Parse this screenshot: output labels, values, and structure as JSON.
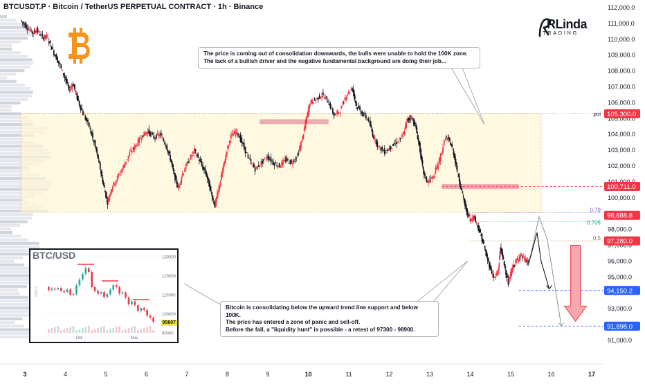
{
  "header": {
    "title": "BTCUSDT.P · Bitcoin / TetherUS PERPETUAL CONTRACT · 1h · Binance"
  },
  "brand": {
    "logo_main": "RLinda",
    "logo_sub": "TRADING",
    "icon": "bitcoin-logo-icon"
  },
  "colors": {
    "up": "#f23645",
    "down": "#131722",
    "zone": "#fff7d6",
    "level_red": "#f23645",
    "level_blue": "#2962ff",
    "fib_purple": "#7e57c2",
    "fib_teal": "#26a69a",
    "bitcoin": "#f7931a"
  },
  "annotations": {
    "top": {
      "line1": "The price is coming out of consolidation downwards, the bulls were unable to hold the 100K zone.",
      "line2": "The lack of a bullish driver and the negative fundamental background are doing their job..."
    },
    "bottom": {
      "line1": "Bitcoin is consolidating below the upward trend line support and below 100K.",
      "line2": "The price has entered a zone of panic and sell-off.",
      "line3": "Before the fall, a \"liquidity hunt\" is possible - a retest of 97300 - 98900."
    }
  },
  "chart_data": {
    "type": "candlestick",
    "title": "BTCUSDT.P · Bitcoin / TetherUS PERPETUAL CONTRACT · 1h · Binance",
    "ylim": [
      90500,
      112300
    ],
    "y_ticks": [
      "112,000.0",
      "111,000.0",
      "110,000.0",
      "109,000.0",
      "108,000.0",
      "107,000.0",
      "106,000.0",
      "105,000.0",
      "104,000.0",
      "103,000.0",
      "102,000.0",
      "101,000.0",
      "100,000.0",
      "99,000.0",
      "98,000.0",
      "97,000.0",
      "96,000.0",
      "95,000.0",
      "94,000.0",
      "93,000.0",
      "92,000.0",
      "91,000.0"
    ],
    "x_ticks": [
      "3",
      "4",
      "5",
      "6",
      "7",
      "8",
      "9",
      "10",
      "11",
      "12",
      "13",
      "14",
      "15",
      "16",
      "17"
    ],
    "bold_x_ticks": [
      "3",
      "10",
      "17"
    ],
    "price_labels": [
      {
        "text": "105,300.0",
        "value": 105300,
        "style": "red"
      },
      {
        "text": "100,711.0",
        "value": 100711,
        "style": "red"
      },
      {
        "text": "98,888.8",
        "value": 98888.8,
        "style": "red"
      },
      {
        "text": "97,280.0",
        "value": 97280,
        "style": "red"
      },
      {
        "text": "94,150.2",
        "value": 94150.2,
        "style": "blue"
      },
      {
        "text": "91,898.0",
        "value": 91898,
        "style": "blue"
      }
    ],
    "poi_label": "poi",
    "fib_levels": [
      {
        "label": "0.79",
        "value": 99050
      },
      {
        "label": "0.705",
        "value": 98480
      },
      {
        "label": "0.5",
        "value": 97280
      }
    ],
    "consolidation_zone": {
      "top": 105300,
      "bottom": 99100,
      "x_start": 2.9,
      "x_end": 15.75
    },
    "resistance_bars": [
      {
        "x_start": 8.8,
        "x_end": 10.5,
        "value": 104800
      },
      {
        "x_start": 13.3,
        "x_end": 15.2,
        "value": 100711
      }
    ],
    "ohlc_path": [
      [
        2.9,
        111200
      ],
      [
        3.05,
        110800
      ],
      [
        3.2,
        110400
      ],
      [
        3.3,
        110600
      ],
      [
        3.45,
        110100
      ],
      [
        3.55,
        110200
      ],
      [
        3.7,
        109300
      ],
      [
        3.85,
        108500
      ],
      [
        4.0,
        107600
      ],
      [
        4.1,
        106800
      ],
      [
        4.2,
        107200
      ],
      [
        4.3,
        106300
      ],
      [
        4.45,
        105300
      ],
      [
        4.6,
        104500
      ],
      [
        4.75,
        103200
      ],
      [
        4.85,
        102100
      ],
      [
        4.95,
        100800
      ],
      [
        5.05,
        99700
      ],
      [
        5.15,
        100600
      ],
      [
        5.3,
        101300
      ],
      [
        5.45,
        102000
      ],
      [
        5.6,
        102800
      ],
      [
        5.75,
        103300
      ],
      [
        5.9,
        103900
      ],
      [
        6.05,
        104200
      ],
      [
        6.2,
        103800
      ],
      [
        6.35,
        104000
      ],
      [
        6.5,
        103300
      ],
      [
        6.6,
        102500
      ],
      [
        6.7,
        101400
      ],
      [
        6.8,
        100600
      ],
      [
        6.9,
        101500
      ],
      [
        7.05,
        102300
      ],
      [
        7.2,
        103000
      ],
      [
        7.35,
        102200
      ],
      [
        7.5,
        101400
      ],
      [
        7.6,
        100400
      ],
      [
        7.7,
        99500
      ],
      [
        7.8,
        100600
      ],
      [
        7.9,
        101800
      ],
      [
        8.0,
        103000
      ],
      [
        8.1,
        103900
      ],
      [
        8.25,
        104200
      ],
      [
        8.4,
        103300
      ],
      [
        8.55,
        102400
      ],
      [
        8.7,
        101800
      ],
      [
        8.85,
        102200
      ],
      [
        9.0,
        102600
      ],
      [
        9.15,
        102200
      ],
      [
        9.3,
        102000
      ],
      [
        9.45,
        102400
      ],
      [
        9.6,
        102200
      ],
      [
        9.75,
        102700
      ],
      [
        9.85,
        103600
      ],
      [
        9.95,
        104800
      ],
      [
        10.05,
        106000
      ],
      [
        10.2,
        106200
      ],
      [
        10.35,
        106500
      ],
      [
        10.5,
        106100
      ],
      [
        10.65,
        105200
      ],
      [
        10.8,
        105500
      ],
      [
        10.95,
        106500
      ],
      [
        11.1,
        106900
      ],
      [
        11.2,
        105800
      ],
      [
        11.35,
        105300
      ],
      [
        11.5,
        104900
      ],
      [
        11.6,
        104000
      ],
      [
        11.75,
        103200
      ],
      [
        11.9,
        102900
      ],
      [
        12.05,
        103200
      ],
      [
        12.2,
        103500
      ],
      [
        12.35,
        103900
      ],
      [
        12.45,
        104900
      ],
      [
        12.55,
        105100
      ],
      [
        12.65,
        104600
      ],
      [
        12.75,
        103300
      ],
      [
        12.85,
        101600
      ],
      [
        12.95,
        101000
      ],
      [
        13.1,
        101300
      ],
      [
        13.25,
        102400
      ],
      [
        13.4,
        103800
      ],
      [
        13.5,
        103600
      ],
      [
        13.6,
        102800
      ],
      [
        13.7,
        101600
      ],
      [
        13.8,
        100400
      ],
      [
        13.9,
        99300
      ],
      [
        14.0,
        98600
      ],
      [
        14.1,
        98800
      ],
      [
        14.2,
        98200
      ],
      [
        14.3,
        97400
      ],
      [
        14.4,
        96400
      ],
      [
        14.5,
        95600
      ],
      [
        14.6,
        94900
      ],
      [
        14.7,
        95300
      ],
      [
        14.75,
        96900
      ],
      [
        14.85,
        95800
      ],
      [
        14.95,
        94600
      ],
      [
        15.05,
        95600
      ],
      [
        15.15,
        96000
      ],
      [
        15.25,
        96400
      ],
      [
        15.35,
        96100
      ],
      [
        15.45,
        95900
      ]
    ],
    "projection_black": [
      [
        15.45,
        95900
      ],
      [
        15.65,
        97800
      ],
      [
        15.75,
        96000
      ],
      [
        15.95,
        94250
      ]
    ],
    "projection_grey": [
      [
        15.45,
        95900
      ],
      [
        15.7,
        98800
      ],
      [
        15.9,
        97400
      ],
      [
        16.25,
        91900
      ]
    ],
    "down_arrow": {
      "x": 16.6,
      "from": 97000,
      "to": 92200
    },
    "inset": {
      "title": "BTC/USD",
      "type": "candlestick",
      "y_ticks": [
        "130000",
        "120000",
        "110000",
        "100000",
        "90000"
      ],
      "x_ticks": [
        "Oct",
        "Nov"
      ],
      "price_label": "95807",
      "side_label": "DAILY",
      "series": [
        114000,
        112500,
        113200,
        112800,
        113600,
        112000,
        111400,
        112800,
        110000,
        110400,
        115000,
        118000,
        121000,
        124000,
        122000,
        114000,
        112000,
        110500,
        111400,
        108800,
        110300,
        112700,
        115000,
        114000,
        110600,
        111200,
        108500,
        105000,
        106500,
        104500,
        101500,
        103000,
        102000,
        99000,
        98000,
        95807
      ]
    }
  }
}
